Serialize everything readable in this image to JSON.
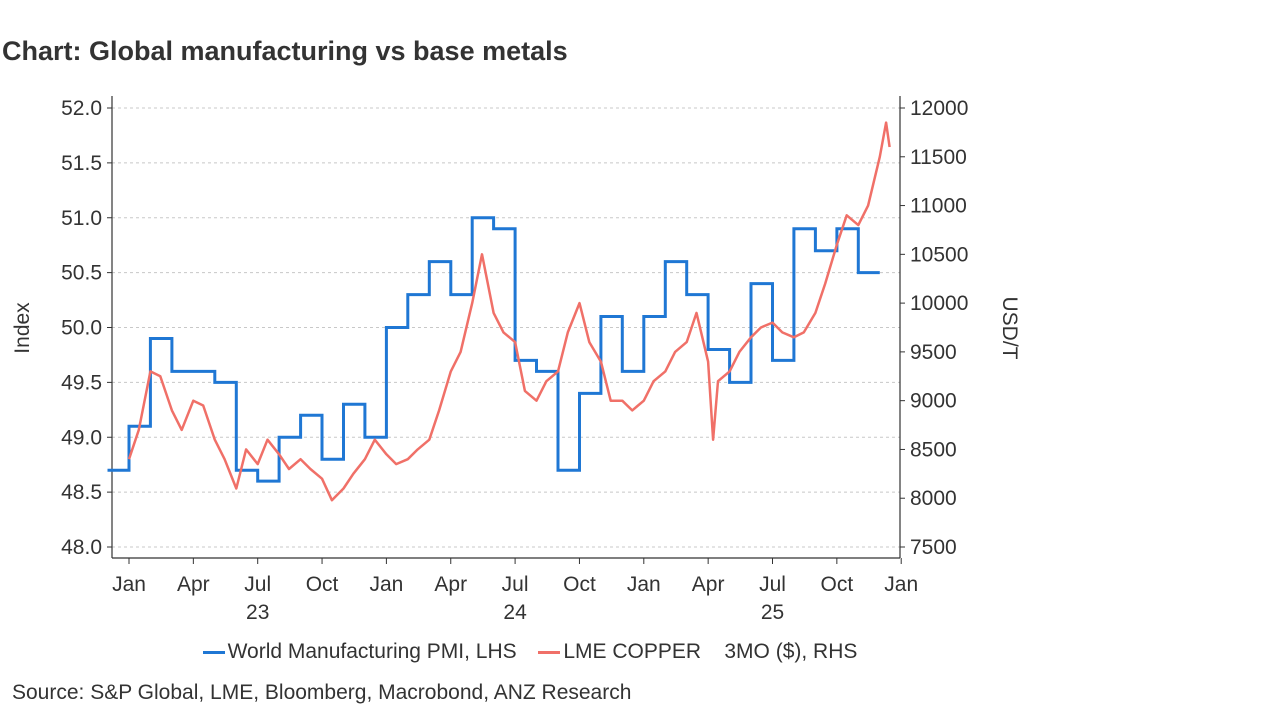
{
  "chart_data": {
    "type": "line",
    "title": "Chart: Global manufacturing vs base metals",
    "ylabel_left": "Index",
    "ylabel_right": "USD/T",
    "ylim_left": [
      48.0,
      52.0
    ],
    "ylim_right": [
      7500,
      12000
    ],
    "yticks_left": [
      "52.0",
      "51.5",
      "51.0",
      "50.5",
      "50.0",
      "49.5",
      "49.0",
      "48.5",
      "48.0"
    ],
    "yticks_right": [
      "12000",
      "11500",
      "11000",
      "10500",
      "10000",
      "9500",
      "9000",
      "8500",
      "8000",
      "7500"
    ],
    "x_month_ticks": [
      "Jan",
      "Apr",
      "Jul",
      "Oct",
      "Jan",
      "Apr",
      "Jul",
      "Oct",
      "Jan",
      "Apr",
      "Jul",
      "Oct",
      "Jan"
    ],
    "x_year_labels": [
      "23",
      "24",
      "25"
    ],
    "grid": true,
    "series": [
      {
        "name": "World Manufacturing PMI, LHS",
        "axis": "left",
        "color": "#1f77d4",
        "x": [
          "2022-12",
          "2023-01",
          "2023-02",
          "2023-03",
          "2023-04",
          "2023-05",
          "2023-06",
          "2023-07",
          "2023-08",
          "2023-09",
          "2023-10",
          "2023-11",
          "2023-12",
          "2024-01",
          "2024-02",
          "2024-03",
          "2024-04",
          "2024-05",
          "2024-06",
          "2024-07",
          "2024-08",
          "2024-09",
          "2024-10",
          "2024-11",
          "2024-12",
          "2025-01",
          "2025-02",
          "2025-03",
          "2025-04",
          "2025-05",
          "2025-06",
          "2025-07",
          "2025-08",
          "2025-09",
          "2025-10",
          "2025-11"
        ],
        "values": [
          48.7,
          49.1,
          49.9,
          49.6,
          49.6,
          49.5,
          48.7,
          48.6,
          49.0,
          49.2,
          48.8,
          49.3,
          49.0,
          50.0,
          50.3,
          50.6,
          50.3,
          51.0,
          50.9,
          49.7,
          49.6,
          48.7,
          49.4,
          50.1,
          49.6,
          50.1,
          50.6,
          50.3,
          49.8,
          49.5,
          50.4,
          49.7,
          50.9,
          50.7,
          50.9,
          50.5
        ]
      },
      {
        "name": "LME COPPER    3MO ($), RHS",
        "axis": "right",
        "color": "#f07068",
        "x": [
          "2023-01-01",
          "2023-01-15",
          "2023-02-01",
          "2023-02-15",
          "2023-03-01",
          "2023-03-15",
          "2023-04-01",
          "2023-04-15",
          "2023-05-01",
          "2023-05-15",
          "2023-06-01",
          "2023-06-15",
          "2023-07-01",
          "2023-07-15",
          "2023-08-01",
          "2023-08-15",
          "2023-09-01",
          "2023-09-15",
          "2023-10-01",
          "2023-10-15",
          "2023-11-01",
          "2023-11-15",
          "2023-12-01",
          "2023-12-15",
          "2024-01-01",
          "2024-01-15",
          "2024-02-01",
          "2024-02-15",
          "2024-03-01",
          "2024-03-15",
          "2024-04-01",
          "2024-04-15",
          "2024-05-01",
          "2024-05-15",
          "2024-06-01",
          "2024-06-15",
          "2024-07-01",
          "2024-07-15",
          "2024-08-01",
          "2024-08-15",
          "2024-09-01",
          "2024-09-15",
          "2024-10-01",
          "2024-10-15",
          "2024-11-01",
          "2024-11-15",
          "2024-12-01",
          "2024-12-15",
          "2025-01-01",
          "2025-01-15",
          "2025-02-01",
          "2025-02-15",
          "2025-03-01",
          "2025-03-15",
          "2025-04-01",
          "2025-04-08",
          "2025-04-15",
          "2025-05-01",
          "2025-05-15",
          "2025-06-01",
          "2025-06-15",
          "2025-07-01",
          "2025-07-15",
          "2025-08-01",
          "2025-08-15",
          "2025-09-01",
          "2025-09-15",
          "2025-10-01",
          "2025-10-15",
          "2025-11-01",
          "2025-11-15",
          "2025-12-01",
          "2025-12-10",
          "2025-12-15"
        ],
        "values": [
          8400,
          8700,
          9300,
          9250,
          8900,
          8700,
          9000,
          8950,
          8600,
          8400,
          8100,
          8500,
          8350,
          8600,
          8450,
          8300,
          8400,
          8300,
          8200,
          7980,
          8100,
          8250,
          8400,
          8600,
          8450,
          8350,
          8400,
          8500,
          8600,
          8900,
          9300,
          9500,
          10000,
          10500,
          9900,
          9700,
          9600,
          9100,
          9000,
          9200,
          9300,
          9700,
          10000,
          9600,
          9400,
          9000,
          9000,
          8900,
          9000,
          9200,
          9300,
          9500,
          9600,
          9900,
          9400,
          8600,
          9200,
          9300,
          9500,
          9650,
          9750,
          9800,
          9700,
          9650,
          9700,
          9900,
          10200,
          10600,
          10900,
          10800,
          11000,
          11500,
          11850,
          11600
        ]
      }
    ]
  },
  "legend": {
    "pmi_label": "World Manufacturing PMI, LHS",
    "copper_label": "LME COPPER    3MO ($), RHS"
  },
  "source": "Source: S&P Global, LME, Bloomberg, Macrobond, ANZ Research"
}
